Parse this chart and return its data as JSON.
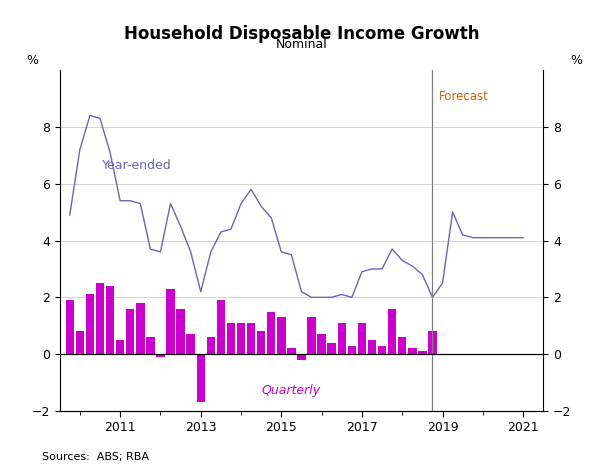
{
  "title": "Household Disposable Income Growth",
  "subtitle": "Nominal",
  "source": "Sources:  ABS; RBA",
  "forecast_label": "Forecast",
  "year_ended_label": "Year-ended",
  "quarterly_label": "Quarterly",
  "ylim": [
    -2,
    10
  ],
  "yticks": [
    -2,
    0,
    2,
    4,
    6,
    8
  ],
  "forecast_x": 2018.75,
  "line_color": "#6666bb",
  "bar_color": "#cc00cc",
  "forecast_text_color": "#cc6600",
  "quarterly_data": {
    "dates": [
      2009.75,
      2010.0,
      2010.25,
      2010.5,
      2010.75,
      2011.0,
      2011.25,
      2011.5,
      2011.75,
      2012.0,
      2012.25,
      2012.5,
      2012.75,
      2013.0,
      2013.25,
      2013.5,
      2013.75,
      2014.0,
      2014.25,
      2014.5,
      2014.75,
      2015.0,
      2015.25,
      2015.5,
      2015.75,
      2016.0,
      2016.25,
      2016.5,
      2016.75,
      2017.0,
      2017.25,
      2017.5,
      2017.75,
      2018.0,
      2018.25,
      2018.5,
      2018.75
    ],
    "values": [
      1.9,
      0.8,
      2.1,
      2.5,
      2.4,
      0.5,
      1.6,
      1.8,
      0.6,
      -0.1,
      2.3,
      1.6,
      0.7,
      -1.7,
      0.6,
      1.9,
      1.1,
      1.1,
      1.1,
      0.8,
      1.5,
      1.3,
      0.2,
      -0.2,
      1.3,
      0.7,
      0.4,
      1.1,
      0.3,
      1.1,
      0.5,
      0.3,
      1.6,
      0.6,
      0.2,
      0.1,
      0.8
    ]
  },
  "year_ended_data": {
    "dates": [
      2009.75,
      2010.0,
      2010.25,
      2010.5,
      2010.75,
      2011.0,
      2011.25,
      2011.5,
      2011.75,
      2012.0,
      2012.25,
      2012.5,
      2012.75,
      2013.0,
      2013.25,
      2013.5,
      2013.75,
      2014.0,
      2014.25,
      2014.5,
      2014.75,
      2015.0,
      2015.25,
      2015.5,
      2015.75,
      2016.0,
      2016.25,
      2016.5,
      2016.75,
      2017.0,
      2017.25,
      2017.5,
      2017.75,
      2018.0,
      2018.25,
      2018.5,
      2018.75,
      2019.0,
      2019.25,
      2019.5,
      2019.75,
      2020.0,
      2020.25,
      2020.5,
      2020.75,
      2021.0
    ],
    "values": [
      4.9,
      7.2,
      8.4,
      8.3,
      7.1,
      5.4,
      5.4,
      5.3,
      3.7,
      3.6,
      5.3,
      4.5,
      3.6,
      2.2,
      3.6,
      4.3,
      4.4,
      5.3,
      5.8,
      5.2,
      4.8,
      3.6,
      3.5,
      2.2,
      2.0,
      2.0,
      2.0,
      2.1,
      2.0,
      2.9,
      3.0,
      3.0,
      3.7,
      3.3,
      3.1,
      2.8,
      2.0,
      2.5,
      5.0,
      4.2,
      4.1,
      4.1,
      4.1,
      4.1,
      4.1,
      4.1
    ]
  },
  "xlim": [
    2009.5,
    2021.5
  ],
  "xticks": [
    2011,
    2013,
    2015,
    2017,
    2019,
    2021
  ]
}
